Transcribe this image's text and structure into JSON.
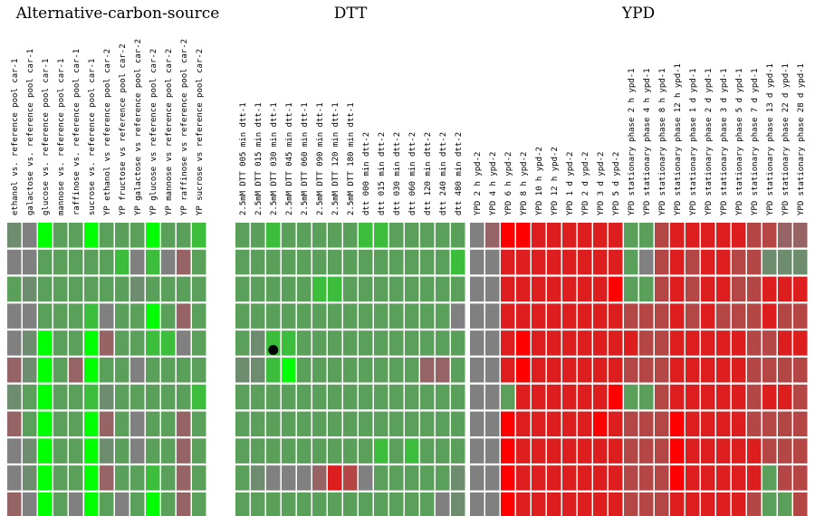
{
  "chart_data": {
    "type": "heatmap",
    "colors": {
      "bright_green": "#00ff00",
      "green": "#3cbe3c",
      "light_green": "#5aa05a",
      "grey_green": "#6e8c6e",
      "grey": "#808080",
      "grey_red": "#966464",
      "light_red": "#b44646",
      "red": "#dc1e1e",
      "bright_red": "#ff0000"
    },
    "color_scale_note": "",
    "legend": [],
    "marker": {
      "row": 4,
      "column": 15
    },
    "groups": [
      {
        "title": "Alternative-carbon-source",
        "columns": [
          "ethanol vs. reference pool car-1",
          "galactose vs. reference pool car-1",
          "glucose vs. reference pool car-1",
          "mannose vs. reference pool car-1",
          "raffinose vs. reference pool car-1",
          "sucrose vs. reference pool car-1",
          "YP ethanol vs reference pool car-2",
          "YP fructose vs reference pool car-2",
          "YP galactose vs reference pool car-2",
          "YP glucose vs reference pool car-2",
          "YP mannose vs reference pool car-2",
          "YP raffinose vs reference pool car-2",
          "YP sucrose vs reference pool car-2"
        ]
      },
      {
        "title": "DTT",
        "columns": [
          "2.5mM DTT 005 min dtt-1",
          "2.5mM DTT 015 min dtt-1",
          "2.5mM DTT 030 min dtt-1",
          "2.5mM DTT 045 min dtt-1",
          "2.5mM DTT 060 min dtt-1",
          "2.5mM DTT 090 min dtt-1",
          "2.5mM DTT 120 min dtt-1",
          "2.5mM DTT 180 min dtt-1",
          "dtt 000 min  dtt-2",
          "dtt 015 min dtt-2",
          "dtt 030 min  dtt-2",
          "dtt 060 min dtt-2",
          "dtt 120 min dtt-2",
          "dtt 240 min dtt-2",
          "dtt 480 min dtt-2"
        ]
      },
      {
        "title": "YPD",
        "columns": [
          "YPD 2 h ypd-2",
          "YPD 4 h ypd-2",
          "YPD 6 h ypd-2",
          "YPD 8 h ypd-2",
          "YPD 10 h  ypd-2",
          "YPD 12 h ypd-2",
          "YPD 1 d ypd-2",
          "YPD 2 d ypd-2",
          "YPD 3 d ypd-2",
          "YPD 5 d ypd-2",
          "YPD stationary phase 2 h ypd-1",
          "YPD stationary phase 4 h ypd-1",
          "YPD stationary phase 8 h ypd-1",
          "YPD stationary phase 12 h ypd-1",
          "YPD stationary phase 1 d ypd-1",
          "YPD stationary phase 2 d ypd-1",
          "YPD stationary phase 3 d ypd-1",
          "YPD stationary phase 5 d ypd-1",
          "YPD stationary phase 7 d ypd-1",
          "YPD stationary phase 13 d ypd-1",
          "YPD stationary phase 22 d ypd-1",
          "YPD stationary phase 28 d ypd-1"
        ]
      }
    ],
    "rows": [
      {
        "values": [
          -1,
          0,
          -4,
          -2,
          -2,
          -4,
          -2,
          -2,
          -2,
          -4,
          -2,
          -2,
          -3,
          -2,
          -2,
          -3,
          -2,
          -2,
          -2,
          -2,
          -2,
          -3,
          -3,
          -2,
          -2,
          -2,
          -2,
          -2,
          0,
          1,
          4,
          4,
          3,
          3,
          3,
          3,
          3,
          3,
          -2,
          -2,
          2,
          3,
          3,
          3,
          3,
          3,
          2,
          2,
          1,
          1
        ]
      },
      {
        "values": [
          0,
          0,
          -2,
          -2,
          -2,
          -2,
          -2,
          -3,
          0,
          -3,
          0,
          1,
          -2,
          -2,
          -2,
          -2,
          -2,
          -2,
          -2,
          -2,
          -2,
          -2,
          -2,
          -2,
          -2,
          -2,
          -2,
          -3,
          0,
          0,
          3,
          3,
          3,
          3,
          3,
          3,
          3,
          3,
          -2,
          0,
          2,
          3,
          2,
          3,
          3,
          2,
          2,
          -1,
          -1,
          -1
        ]
      },
      {
        "values": [
          -2,
          -1,
          -2,
          -2,
          -2,
          -2,
          -2,
          -2,
          -1,
          -2,
          -2,
          -2,
          -2,
          -2,
          -2,
          -2,
          -2,
          -2,
          -3,
          -3,
          -2,
          -2,
          -2,
          -2,
          -2,
          -2,
          -2,
          -2,
          0,
          0,
          3,
          3,
          3,
          3,
          3,
          3,
          3,
          4,
          -2,
          -2,
          2,
          3,
          2,
          3,
          3,
          2,
          2,
          3,
          3,
          3
        ]
      },
      {
        "values": [
          0,
          0,
          -2,
          -2,
          -2,
          -3,
          0,
          -2,
          -2,
          -4,
          -2,
          1,
          -2,
          -2,
          -2,
          -2,
          -2,
          -2,
          -2,
          -2,
          -2,
          -2,
          -2,
          -2,
          -2,
          -2,
          -2,
          0,
          0,
          0,
          3,
          3,
          3,
          3,
          3,
          3,
          3,
          3,
          2,
          2,
          2,
          3,
          2,
          3,
          2,
          2,
          2,
          3,
          2,
          2
        ]
      },
      {
        "values": [
          0,
          -1,
          -4,
          -2,
          -2,
          -4,
          1,
          -2,
          -2,
          -3,
          -3,
          0,
          -2,
          -2,
          -1,
          -3,
          -3,
          -2,
          -2,
          -2,
          -2,
          -2,
          -2,
          -2,
          -2,
          -2,
          -2,
          -2,
          0,
          0,
          3,
          4,
          3,
          3,
          3,
          3,
          3,
          3,
          3,
          2,
          2,
          3,
          3,
          3,
          3,
          3,
          2,
          2,
          3,
          3
        ]
      },
      {
        "values": [
          1,
          -1,
          -4,
          -2,
          1,
          -4,
          -2,
          -2,
          0,
          -2,
          -2,
          -2,
          -2,
          -1,
          -1,
          -3,
          -4,
          -2,
          -2,
          -2,
          -2,
          -2,
          -2,
          -2,
          -2,
          1,
          1,
          -2,
          0,
          0,
          3,
          4,
          3,
          3,
          3,
          3,
          3,
          3,
          2,
          2,
          2,
          3,
          3,
          3,
          3,
          3,
          2,
          2,
          2,
          2
        ]
      },
      {
        "values": [
          -1,
          -2,
          -4,
          -2,
          -2,
          -3,
          -1,
          -2,
          -2,
          -2,
          -2,
          -2,
          -3,
          -2,
          -2,
          -2,
          -2,
          -2,
          -2,
          -2,
          -2,
          -2,
          -2,
          -2,
          -2,
          -2,
          -2,
          -2,
          0,
          0,
          -2,
          3,
          3,
          3,
          3,
          3,
          3,
          4,
          -2,
          -2,
          2,
          3,
          3,
          3,
          3,
          3,
          2,
          3,
          3,
          2
        ]
      },
      {
        "values": [
          1,
          -2,
          -4,
          -2,
          -2,
          -4,
          1,
          -2,
          0,
          -2,
          -2,
          1,
          -2,
          -2,
          -2,
          -2,
          -2,
          -2,
          -2,
          -2,
          -2,
          -2,
          -2,
          -2,
          -2,
          -2,
          -2,
          -2,
          0,
          0,
          4,
          3,
          3,
          3,
          3,
          3,
          4,
          3,
          2,
          2,
          2,
          4,
          3,
          3,
          3,
          3,
          2,
          2,
          2,
          2
        ]
      },
      {
        "values": [
          0,
          -1,
          -4,
          -2,
          -2,
          -4,
          -1,
          -2,
          0,
          -2,
          -2,
          1,
          -2,
          -2,
          -2,
          -2,
          -2,
          -2,
          -2,
          -2,
          -2,
          -2,
          -3,
          -2,
          -3,
          -2,
          -2,
          -2,
          0,
          0,
          4,
          3,
          3,
          3,
          3,
          3,
          3,
          3,
          2,
          2,
          2,
          4,
          3,
          3,
          3,
          3,
          3,
          2,
          2,
          2
        ]
      },
      {
        "values": [
          0,
          -1,
          -4,
          -2,
          -2,
          -4,
          1,
          -2,
          -2,
          -3,
          -2,
          1,
          -2,
          -2,
          -1,
          0,
          0,
          0,
          1,
          3,
          2,
          0,
          -2,
          -2,
          -2,
          -2,
          -2,
          -1,
          0,
          0,
          4,
          3,
          3,
          3,
          3,
          3,
          3,
          3,
          2,
          2,
          2,
          4,
          3,
          3,
          3,
          3,
          3,
          -2,
          2,
          2
        ]
      },
      {
        "values": [
          1,
          0,
          -4,
          -2,
          0,
          -4,
          -2,
          0,
          -2,
          -4,
          -2,
          1,
          -2,
          -2,
          -2,
          -2,
          -2,
          -2,
          -2,
          -2,
          -2,
          -2,
          -2,
          -2,
          -2,
          -2,
          0,
          -1,
          0,
          0,
          4,
          3,
          3,
          3,
          3,
          3,
          3,
          3,
          2,
          2,
          2,
          3,
          3,
          3,
          3,
          3,
          2,
          -2,
          -2,
          2
        ]
      }
    ]
  }
}
